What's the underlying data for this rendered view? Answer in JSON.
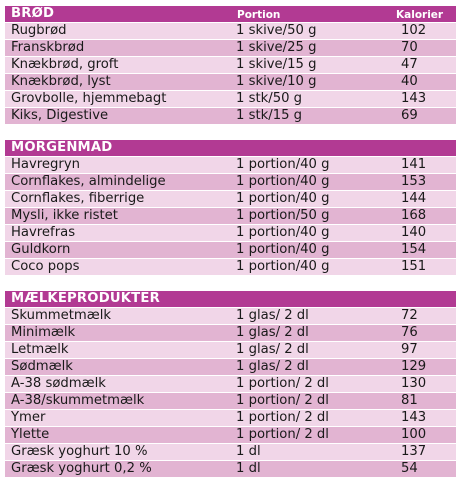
{
  "columns": {
    "portion": "Portion",
    "calories": "Kalorier"
  },
  "sections": [
    {
      "title": "BRØD",
      "show_columns": true,
      "rows": [
        {
          "name": "Rugbrød",
          "portion": "1 skive/50 g",
          "kcal": "102"
        },
        {
          "name": "Franskbrød",
          "portion": "1 skive/25 g",
          "kcal": "70"
        },
        {
          "name": "Knækbrød, groft",
          "portion": "1 skive/15 g",
          "kcal": "47"
        },
        {
          "name": "Knækbrød, lyst",
          "portion": "1 skive/10 g",
          "kcal": "40"
        },
        {
          "name": "Grovbolle, hjemmebagt",
          "portion": "1 stk/50 g",
          "kcal": "143"
        },
        {
          "name": "Kiks, Digestive",
          "portion": "1 stk/15 g",
          "kcal": "69"
        }
      ]
    },
    {
      "title": "MORGENMAD",
      "show_columns": false,
      "rows": [
        {
          "name": "Havregryn",
          "portion": "1 portion/40 g",
          "kcal": "141"
        },
        {
          "name": "Cornflakes, almindelige",
          "portion": "1 portion/40 g",
          "kcal": "153"
        },
        {
          "name": "Cornflakes, fiberrige",
          "portion": "1 portion/40 g",
          "kcal": "144"
        },
        {
          "name": "Mysli, ikke ristet",
          "portion": "1 portion/50 g",
          "kcal": "168"
        },
        {
          "name": "Havrefras",
          "portion": "1 portion/40 g",
          "kcal": "140"
        },
        {
          "name": "Guldkorn",
          "portion": "1 portion/40 g",
          "kcal": "154"
        },
        {
          "name": "Coco pops",
          "portion": "1 portion/40 g",
          "kcal": "151"
        }
      ]
    },
    {
      "title": "MÆLKEPRODUKTER",
      "show_columns": false,
      "rows": [
        {
          "name": "Skummetmælk",
          "portion": "1 glas/ 2 dl",
          "kcal": "72"
        },
        {
          "name": "Minimælk",
          "portion": "1 glas/ 2 dl",
          "kcal": "76"
        },
        {
          "name": "Letmælk",
          "portion": "1 glas/ 2 dl",
          "kcal": "97"
        },
        {
          "name": "Sødmælk",
          "portion": "1 glas/ 2 dl",
          "kcal": "129"
        },
        {
          "name": "A-38 sødmælk",
          "portion": "1 portion/ 2 dl",
          "kcal": "130"
        },
        {
          "name": "A-38/skummetmælk",
          "portion": "1 portion/ 2 dl",
          "kcal": "81"
        },
        {
          "name": "Ymer",
          "portion": "1 portion/ 2 dl",
          "kcal": "143"
        },
        {
          "name": "Ylette",
          "portion": "1 portion/ 2 dl",
          "kcal": "100"
        },
        {
          "name": "Græsk yoghurt 10 %",
          "portion": "1 dl",
          "kcal": "137"
        },
        {
          "name": "Græsk yoghurt 0,2 %",
          "portion": "1 dl",
          "kcal": "54"
        }
      ]
    }
  ]
}
